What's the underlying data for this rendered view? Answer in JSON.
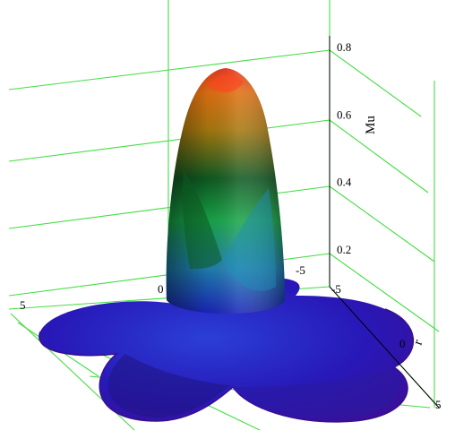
{
  "chart_data": {
    "type": "surface3d",
    "title": "",
    "zlabel": "Mu",
    "ylabel": "r",
    "xlabel": "",
    "zlim": [
      0,
      0.8
    ],
    "z_ticks": [
      "0.2",
      "0.4",
      "0.6",
      "0.8"
    ],
    "x_ticks": [
      "5",
      "0"
    ],
    "y_ticks": [
      "-5",
      "0",
      "5"
    ],
    "back_ticks": [
      "-5"
    ],
    "grid": true,
    "grid_color": "#44dd44",
    "colormap": [
      "#1a0fa8",
      "#2a30c8",
      "#1e7fa0",
      "#1aa64a",
      "#106a2a",
      "#8a6a10",
      "#d47a10",
      "#e3311b"
    ],
    "surface": {
      "shape": "central peak on four-lobed base",
      "peak_value": 0.75,
      "base_lobes": 4
    }
  }
}
